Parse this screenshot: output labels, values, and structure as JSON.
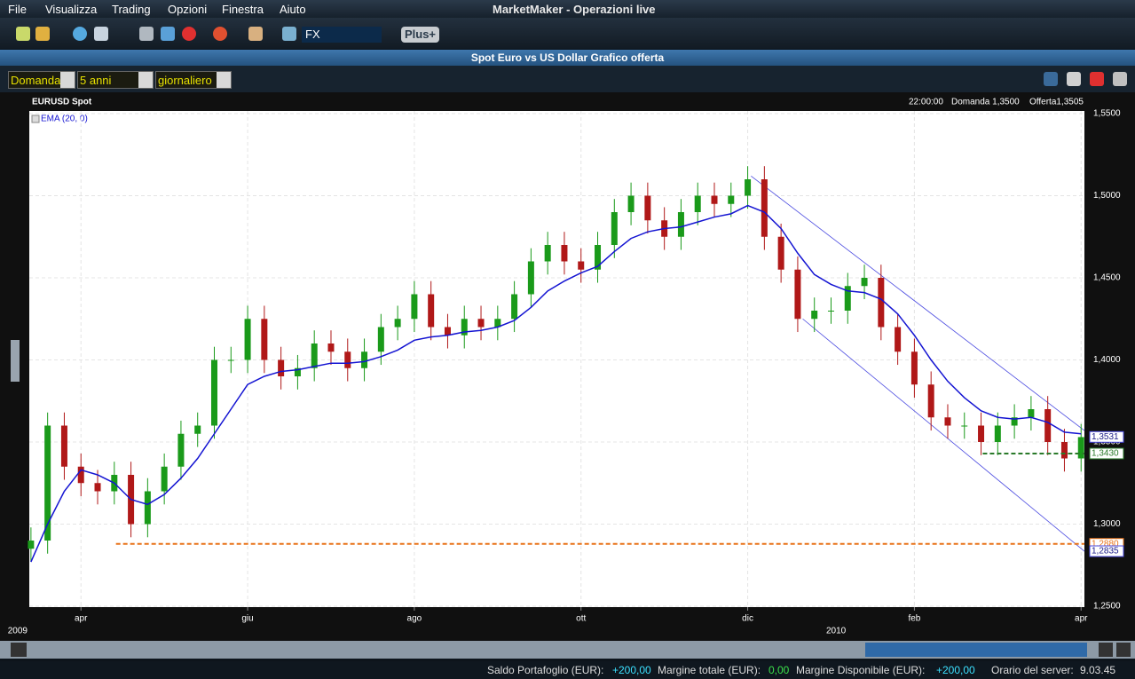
{
  "app": {
    "title": "MarketMaker - Operazioni live",
    "menu": [
      "File",
      "Visualizza",
      "Trading",
      "Opzioni",
      "Finestra",
      "Aiuto"
    ]
  },
  "toolbar": {
    "market": "FX",
    "plus": "Plus+"
  },
  "window": {
    "title": "Spot Euro vs US Dollar Grafico offerta"
  },
  "chart_toolbar": {
    "side": "Domanda",
    "range": "5 anni",
    "period": "giornaliero"
  },
  "quote": {
    "time": "22:00:00",
    "bid": "Domanda 1,3500",
    "ask": "Offerta1,3505"
  },
  "status": {
    "balance_label": "Saldo Portafoglio (EUR):",
    "balance": "+200,00",
    "margin_label": "Margine totale (EUR):",
    "margin": "0,00",
    "available_label": "Margine Disponibile (EUR):",
    "available": "+200,00",
    "time_label": "Orario del server:",
    "time": "9.03.45"
  },
  "chart_data": {
    "type": "candlestick",
    "title": "EURUSD Spot",
    "up_color": "#1a9a1a",
    "down_color": "#b01818",
    "grid": true,
    "open": [
      1.285,
      1.29,
      1.36,
      1.335,
      1.325,
      1.32,
      1.33,
      1.3,
      1.32,
      1.335,
      1.355,
      1.36,
      1.4,
      1.4,
      1.425,
      1.4,
      1.39,
      1.395,
      1.41,
      1.405,
      1.395,
      1.405,
      1.42,
      1.425,
      1.44,
      1.42,
      1.415,
      1.425,
      1.42,
      1.425,
      1.44,
      1.46,
      1.47,
      1.46,
      1.455,
      1.47,
      1.49,
      1.5,
      1.485,
      1.475,
      1.49,
      1.5,
      1.495,
      1.5,
      1.51,
      1.475,
      1.455,
      1.425,
      1.43,
      1.43,
      1.445,
      1.45,
      1.42,
      1.405,
      1.385,
      1.365,
      1.36,
      1.36,
      1.35,
      1.36,
      1.365,
      1.37,
      1.35,
      1.34
    ],
    "high": [
      1.298,
      1.368,
      1.368,
      1.343,
      1.333,
      1.338,
      1.338,
      1.328,
      1.343,
      1.363,
      1.368,
      1.408,
      1.408,
      1.433,
      1.433,
      1.408,
      1.403,
      1.418,
      1.418,
      1.413,
      1.413,
      1.428,
      1.433,
      1.448,
      1.448,
      1.428,
      1.433,
      1.433,
      1.433,
      1.448,
      1.468,
      1.478,
      1.478,
      1.468,
      1.478,
      1.498,
      1.508,
      1.508,
      1.493,
      1.498,
      1.508,
      1.508,
      1.508,
      1.518,
      1.518,
      1.483,
      1.463,
      1.438,
      1.438,
      1.453,
      1.458,
      1.458,
      1.428,
      1.413,
      1.393,
      1.373,
      1.368,
      1.368,
      1.368,
      1.373,
      1.378,
      1.378,
      1.358,
      1.361
    ],
    "low": [
      1.277,
      1.282,
      1.327,
      1.317,
      1.312,
      1.312,
      1.292,
      1.292,
      1.312,
      1.327,
      1.347,
      1.352,
      1.392,
      1.392,
      1.392,
      1.382,
      1.382,
      1.387,
      1.397,
      1.387,
      1.387,
      1.397,
      1.412,
      1.417,
      1.412,
      1.407,
      1.407,
      1.412,
      1.412,
      1.417,
      1.432,
      1.452,
      1.452,
      1.447,
      1.447,
      1.462,
      1.482,
      1.477,
      1.467,
      1.467,
      1.482,
      1.487,
      1.487,
      1.492,
      1.467,
      1.447,
      1.417,
      1.417,
      1.422,
      1.422,
      1.437,
      1.412,
      1.397,
      1.377,
      1.357,
      1.352,
      1.352,
      1.342,
      1.342,
      1.352,
      1.357,
      1.342,
      1.332,
      1.332
    ],
    "close": [
      1.29,
      1.36,
      1.335,
      1.325,
      1.32,
      1.33,
      1.3,
      1.32,
      1.335,
      1.355,
      1.36,
      1.4,
      1.4,
      1.425,
      1.4,
      1.39,
      1.395,
      1.41,
      1.405,
      1.395,
      1.405,
      1.42,
      1.425,
      1.44,
      1.42,
      1.415,
      1.425,
      1.42,
      1.425,
      1.44,
      1.46,
      1.47,
      1.46,
      1.455,
      1.47,
      1.49,
      1.5,
      1.485,
      1.475,
      1.49,
      1.5,
      1.495,
      1.5,
      1.51,
      1.475,
      1.455,
      1.425,
      1.43,
      1.43,
      1.445,
      1.45,
      1.42,
      1.405,
      1.385,
      1.365,
      1.36,
      1.36,
      1.35,
      1.36,
      1.365,
      1.37,
      1.35,
      1.34,
      1.353
    ],
    "ema": {
      "name": "EMA (20, 0)",
      "color": "#1414d2",
      "values": [
        1.277,
        1.3,
        1.32,
        1.333,
        1.33,
        1.325,
        1.315,
        1.312,
        1.318,
        1.328,
        1.34,
        1.355,
        1.37,
        1.385,
        1.39,
        1.393,
        1.394,
        1.396,
        1.398,
        1.398,
        1.399,
        1.402,
        1.406,
        1.412,
        1.414,
        1.415,
        1.417,
        1.418,
        1.42,
        1.424,
        1.432,
        1.442,
        1.448,
        1.453,
        1.457,
        1.466,
        1.474,
        1.478,
        1.48,
        1.481,
        1.484,
        1.487,
        1.489,
        1.494,
        1.49,
        1.48,
        1.465,
        1.452,
        1.446,
        1.442,
        1.441,
        1.437,
        1.428,
        1.415,
        1.4,
        1.387,
        1.377,
        1.369,
        1.365,
        1.364,
        1.365,
        1.362,
        1.356,
        1.355
      ]
    },
    "xlim": [
      -0.1,
      63.2
    ],
    "xticks": [
      {
        "value": 3,
        "label": "apr"
      },
      {
        "value": 13,
        "label": "giu"
      },
      {
        "value": 23,
        "label": "ago"
      },
      {
        "value": 33,
        "label": "ott"
      },
      {
        "value": 43,
        "label": "dic"
      },
      {
        "value": 53,
        "label": "feb"
      },
      {
        "value": 63,
        "label": "apr"
      }
    ],
    "years": [
      {
        "value": -0.8,
        "label": "2009"
      },
      {
        "value": 48.3,
        "label": "2010"
      }
    ],
    "ylim": [
      1.25,
      1.55
    ],
    "yticks": [
      {
        "value": 1.25,
        "label": "1,2500"
      },
      {
        "value": 1.3,
        "label": "1,3000"
      },
      {
        "value": 1.35,
        "label": "1,3500"
      },
      {
        "value": 1.4,
        "label": "1,4000"
      },
      {
        "value": 1.45,
        "label": "1,4500"
      },
      {
        "value": 1.5,
        "label": "1,5000"
      },
      {
        "value": 1.55,
        "label": "1,5500"
      }
    ],
    "levels": [
      {
        "value": 1.288,
        "label": "1,2880",
        "color": "#e8731a",
        "from": 5.1
      },
      {
        "value": 1.343,
        "label": "1,3430",
        "color": "#2a7a2a",
        "from": 57.1
      }
    ],
    "channel": {
      "color": "#4a4ae0",
      "lines": [
        {
          "x": [
            43.2,
            63.2
          ],
          "y": [
            1.512,
            1.357
          ]
        },
        {
          "x": [
            46.3,
            63.2
          ],
          "y": [
            1.425,
            1.2835
          ]
        }
      ]
    },
    "last_price": {
      "value": 1.3531,
      "label": "1,3531"
    },
    "channel_end": {
      "value": 1.2835,
      "label": "1,2835"
    }
  }
}
